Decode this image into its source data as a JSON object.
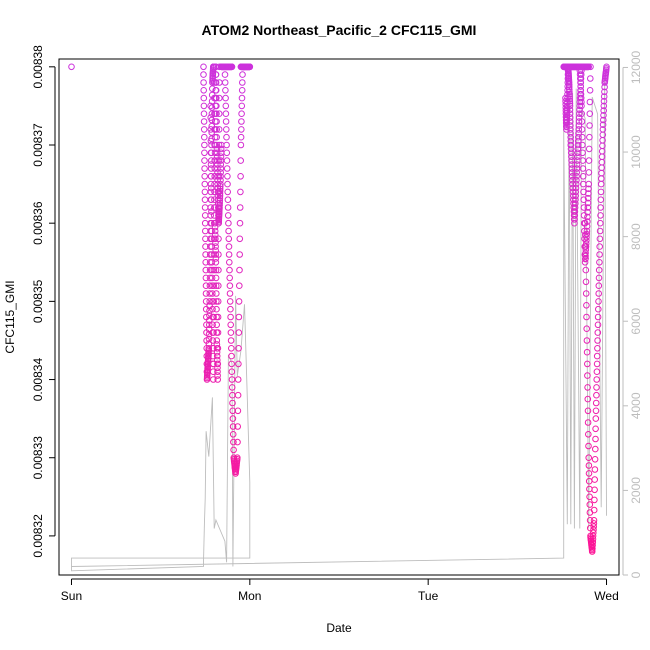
{
  "chart_data": {
    "type": "scatter",
    "title": "ATOM2 Northeast_Pacific_2 CFC115_GMI",
    "xlabel": "Date",
    "ylabel": "CFC115_GMI",
    "x_ticks": [
      "Sun",
      "Mon",
      "Tue",
      "Wed"
    ],
    "y_ticks": [
      "0.00832",
      "0.00833",
      "0.00834",
      "0.00835",
      "0.00836",
      "0.00837",
      "0.00838"
    ],
    "y_ticks_right": [
      "0",
      "2000",
      "4000",
      "6000",
      "8000",
      "10000",
      "12000"
    ],
    "ylim": [
      0.008315,
      0.008381
    ],
    "ylim_right": [
      0,
      12200
    ],
    "xlim": [
      -0.07,
      3.07
    ],
    "grid": false,
    "colors": {
      "markers_high": "#cc33dd",
      "markers_low": "#ff1493",
      "altitude_line": "#bdbdbd",
      "axis": "#000000"
    },
    "series": [
      {
        "name": "",
        "kind": "points",
        "color_low": "#ff1493",
        "color_high": "#cc33dd",
        "segments": [
          {
            "t": [
              0.0
            ],
            "v": [
              0.00838
            ]
          },
          {
            "t": [
              0.74,
              0.745,
              0.75,
              0.755,
              0.76,
              0.765,
              0.77,
              0.775,
              0.78,
              0.785,
              0.79,
              0.795,
              0.8
            ],
            "v": [
              0.00838,
              0.00837,
              0.00836,
              0.00835,
              0.00834,
              0.008342,
              0.008344,
              0.00835,
              0.00836,
              0.00837,
              0.008378,
              0.00838,
              0.00838
            ]
          },
          {
            "t": [
              0.8,
              0.805,
              0.81,
              0.815,
              0.82,
              0.825,
              0.83
            ],
            "v": [
              0.00838,
              0.00836,
              0.008355,
              0.008345,
              0.00834,
              0.00836,
              0.00838
            ]
          },
          {
            "t": [
              0.78,
              0.785,
              0.79,
              0.795,
              0.8,
              0.805,
              0.81
            ],
            "v": [
              0.008375,
              0.00836,
              0.00835,
              0.00834,
              0.00836,
              0.00837,
              0.00838
            ]
          },
          {
            "t": [
              0.81,
              0.815,
              0.82,
              0.825,
              0.83,
              0.835,
              0.84
            ],
            "v": [
              0.00838,
              0.00837,
              0.008365,
              0.00836,
              0.008362,
              0.008365,
              0.00837
            ]
          },
          {
            "t": [
              0.84,
              0.85,
              0.86,
              0.87,
              0.88,
              0.89,
              0.9
            ],
            "v": [
              0.00838,
              0.00838,
              0.00838,
              0.00838,
              0.00838,
              0.00838,
              0.00838
            ]
          },
          {
            "t": [
              0.86,
              0.87,
              0.88,
              0.89,
              0.9,
              0.91,
              0.92,
              0.93,
              0.94,
              0.95,
              0.96,
              0.97,
              1.0
            ],
            "v": [
              0.00838,
              0.00837,
              0.00836,
              0.00835,
              0.00834,
              0.00833,
              0.008328,
              0.00833,
              0.00835,
              0.00837,
              0.00838,
              0.00838,
              0.00838
            ]
          },
          {
            "t": [
              0.95,
              0.96,
              0.97,
              0.98,
              0.99,
              1.0
            ],
            "v": [
              0.00838,
              0.00838,
              0.00838,
              0.00838,
              0.00838,
              0.00838
            ]
          },
          {
            "t": [
              2.76,
              2.77,
              2.78,
              2.79,
              2.8,
              2.81,
              2.82,
              2.83,
              2.84,
              2.85,
              2.86,
              2.87,
              2.88,
              2.89,
              2.9
            ],
            "v": [
              0.00838,
              0.00838,
              0.00838,
              0.00838,
              0.00838,
              0.00838,
              0.00838,
              0.00838,
              0.00838,
              0.00838,
              0.00838,
              0.00838,
              0.00838,
              0.00838,
              0.00838
            ]
          },
          {
            "t": [
              2.77,
              2.775,
              2.78,
              2.785,
              2.79,
              2.795,
              2.8
            ],
            "v": [
              0.008376,
              0.008372,
              0.008375,
              0.00838,
              0.008378,
              0.008375,
              0.00837
            ]
          },
          {
            "t": [
              2.8,
              2.81,
              2.82,
              2.83,
              2.84,
              2.85,
              2.86
            ],
            "v": [
              0.00837,
              0.008365,
              0.00836,
              0.008365,
              0.00837,
              0.008375,
              0.00838
            ]
          },
          {
            "t": [
              2.85,
              2.86,
              2.87,
              2.88,
              2.89,
              2.9,
              2.91
            ],
            "v": [
              0.00838,
              0.008375,
              0.008365,
              0.008355,
              0.008359,
              0.008365,
              0.00838
            ]
          },
          {
            "t": [
              2.88,
              2.89,
              2.9,
              2.91,
              2.92,
              2.93,
              2.94,
              2.95,
              2.96,
              2.97,
              2.98,
              2.99,
              3.0
            ],
            "v": [
              0.00836,
              0.008345,
              0.00833,
              0.00832,
              0.008318,
              0.008322,
              0.008335,
              0.008345,
              0.008355,
              0.008365,
              0.008372,
              0.008378,
              0.00838
            ]
          }
        ]
      },
      {
        "name": "",
        "kind": "altitude-line",
        "t": [
          0.0,
          0.0,
          0.74,
          0.74,
          0.745,
          0.75,
          0.755,
          0.77,
          0.79,
          0.8,
          0.81,
          0.86,
          0.87,
          0.88,
          0.9,
          0.905,
          0.92,
          0.93,
          0.95,
          0.97,
          1.0,
          1.0,
          0.0,
          0.0,
          2.76,
          2.76,
          2.78,
          2.79,
          2.8,
          2.81,
          2.82,
          2.83,
          2.85,
          2.86,
          2.88,
          2.9,
          2.92,
          2.95,
          2.97,
          2.99,
          3.0
        ],
        "alt": [
          200,
          100,
          200,
          300,
          1200,
          1800,
          3400,
          2800,
          4200,
          1100,
          1300,
          800,
          300,
          5200,
          5000,
          200,
          6600,
          4700,
          5300,
          6400,
          2200,
          400,
          400,
          200,
          400,
          10600,
          1200,
          11200,
          1200,
          11400,
          1100,
          11500,
          1100,
          11000,
          10800,
          1100,
          11300,
          10900,
          1600,
          11800,
          1400
        ]
      }
    ]
  }
}
